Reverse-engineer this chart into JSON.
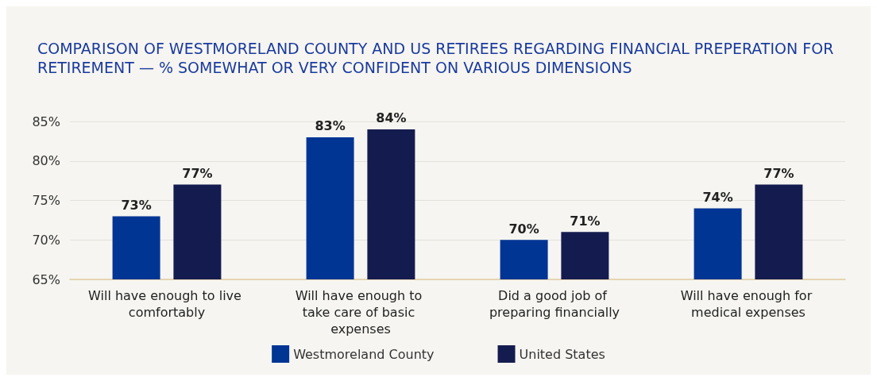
{
  "chart_data": {
    "type": "bar",
    "title": "COMPARISON OF WESTMORELAND COUNTY AND US RETIREES REGARDING FINANCIAL PREPERATION FOR RETIREMENT — % SOMEWHAT OR VERY CONFIDENT ON VARIOUS DIMENSIONS",
    "categories": [
      "Will have enough to live comfortably",
      "Will have enough to take care of basic expenses",
      "Did a good job of preparing financially",
      "Will have enough for medical expenses"
    ],
    "series": [
      {
        "name": "Westmoreland County",
        "color": "#003594",
        "values": [
          73,
          83,
          70,
          74
        ],
        "value_labels": [
          "73%",
          "83%",
          "70%",
          "74%"
        ]
      },
      {
        "name": "United States",
        "color": "#141c4f",
        "values": [
          77,
          84,
          71,
          77
        ],
        "value_labels": [
          "77%",
          "84%",
          "71%",
          "77%"
        ]
      }
    ],
    "ylim": [
      65,
      85
    ],
    "yticks": [
      {
        "value": 65,
        "label": "65%"
      },
      {
        "value": 70,
        "label": "70%"
      },
      {
        "value": 75,
        "label": "75%"
      },
      {
        "value": 80,
        "label": "80%"
      },
      {
        "value": 85,
        "label": "85%"
      }
    ],
    "grid": "y",
    "legend": "bottom"
  }
}
